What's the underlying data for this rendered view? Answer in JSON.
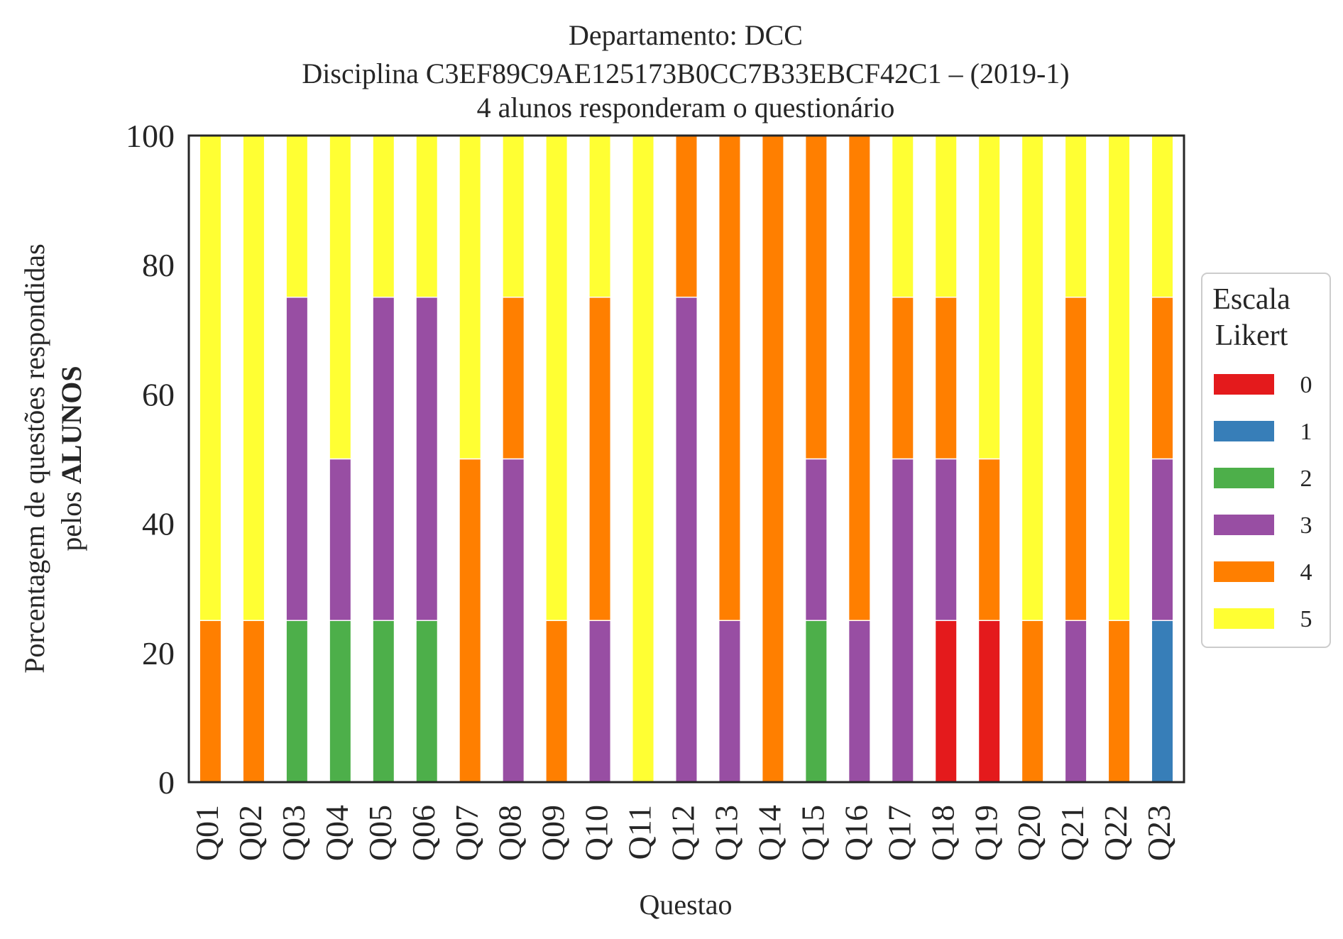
{
  "chart_data": {
    "type": "bar",
    "stacked": true,
    "title": "Departamento: DCC",
    "subtitle": "Disciplina C3EF89C9AE125173B0CC7B33EBCF42C1 – (2019-1)",
    "note": "4 alunos responderam o questionário",
    "xlabel": "Questao",
    "ylabel": "Porcentagem de questões respondidas",
    "ylabel_line2_prefix": "pelos ",
    "ylabel_line2_bold": "ALUNOS",
    "ylim": [
      0,
      100
    ],
    "yticks": [
      "0",
      "20",
      "40",
      "60",
      "80",
      "100"
    ],
    "grid": false,
    "legend": {
      "title_line1": "Escala",
      "title_line2": "Likert",
      "placement": "right",
      "entries": [
        "0",
        "1",
        "2",
        "3",
        "4",
        "5"
      ]
    },
    "categories": [
      "Q01",
      "Q02",
      "Q03",
      "Q04",
      "Q05",
      "Q06",
      "Q07",
      "Q08",
      "Q09",
      "Q10",
      "Q11",
      "Q12",
      "Q13",
      "Q14",
      "Q15",
      "Q16",
      "Q17",
      "Q18",
      "Q19",
      "Q20",
      "Q21",
      "Q22",
      "Q23"
    ],
    "series": [
      {
        "name": "0",
        "color": "#e41a1c",
        "values": [
          0,
          0,
          0,
          0,
          0,
          0,
          0,
          0,
          0,
          0,
          0,
          0,
          0,
          0,
          0,
          0,
          0,
          25,
          25,
          0,
          0,
          0,
          0
        ]
      },
      {
        "name": "1",
        "color": "#377eb8",
        "values": [
          0,
          0,
          0,
          0,
          0,
          0,
          0,
          0,
          0,
          0,
          0,
          0,
          0,
          0,
          0,
          0,
          0,
          0,
          0,
          0,
          0,
          0,
          25
        ]
      },
      {
        "name": "2",
        "color": "#4daf4a",
        "values": [
          0,
          0,
          25,
          25,
          25,
          25,
          0,
          0,
          0,
          0,
          0,
          0,
          0,
          0,
          25,
          0,
          0,
          0,
          0,
          0,
          0,
          0,
          0
        ]
      },
      {
        "name": "3",
        "color": "#984ea3",
        "values": [
          0,
          0,
          50,
          25,
          50,
          50,
          0,
          50,
          0,
          25,
          0,
          75,
          25,
          0,
          25,
          25,
          50,
          25,
          0,
          0,
          25,
          0,
          25
        ]
      },
      {
        "name": "4",
        "color": "#ff7f00",
        "values": [
          25,
          25,
          0,
          0,
          0,
          0,
          50,
          25,
          25,
          50,
          0,
          25,
          75,
          100,
          50,
          75,
          25,
          25,
          25,
          25,
          50,
          25,
          25
        ]
      },
      {
        "name": "5",
        "color": "#ffff33",
        "values": [
          75,
          75,
          25,
          50,
          25,
          25,
          50,
          25,
          75,
          25,
          100,
          0,
          0,
          0,
          0,
          0,
          25,
          25,
          50,
          75,
          25,
          75,
          25
        ]
      }
    ]
  }
}
